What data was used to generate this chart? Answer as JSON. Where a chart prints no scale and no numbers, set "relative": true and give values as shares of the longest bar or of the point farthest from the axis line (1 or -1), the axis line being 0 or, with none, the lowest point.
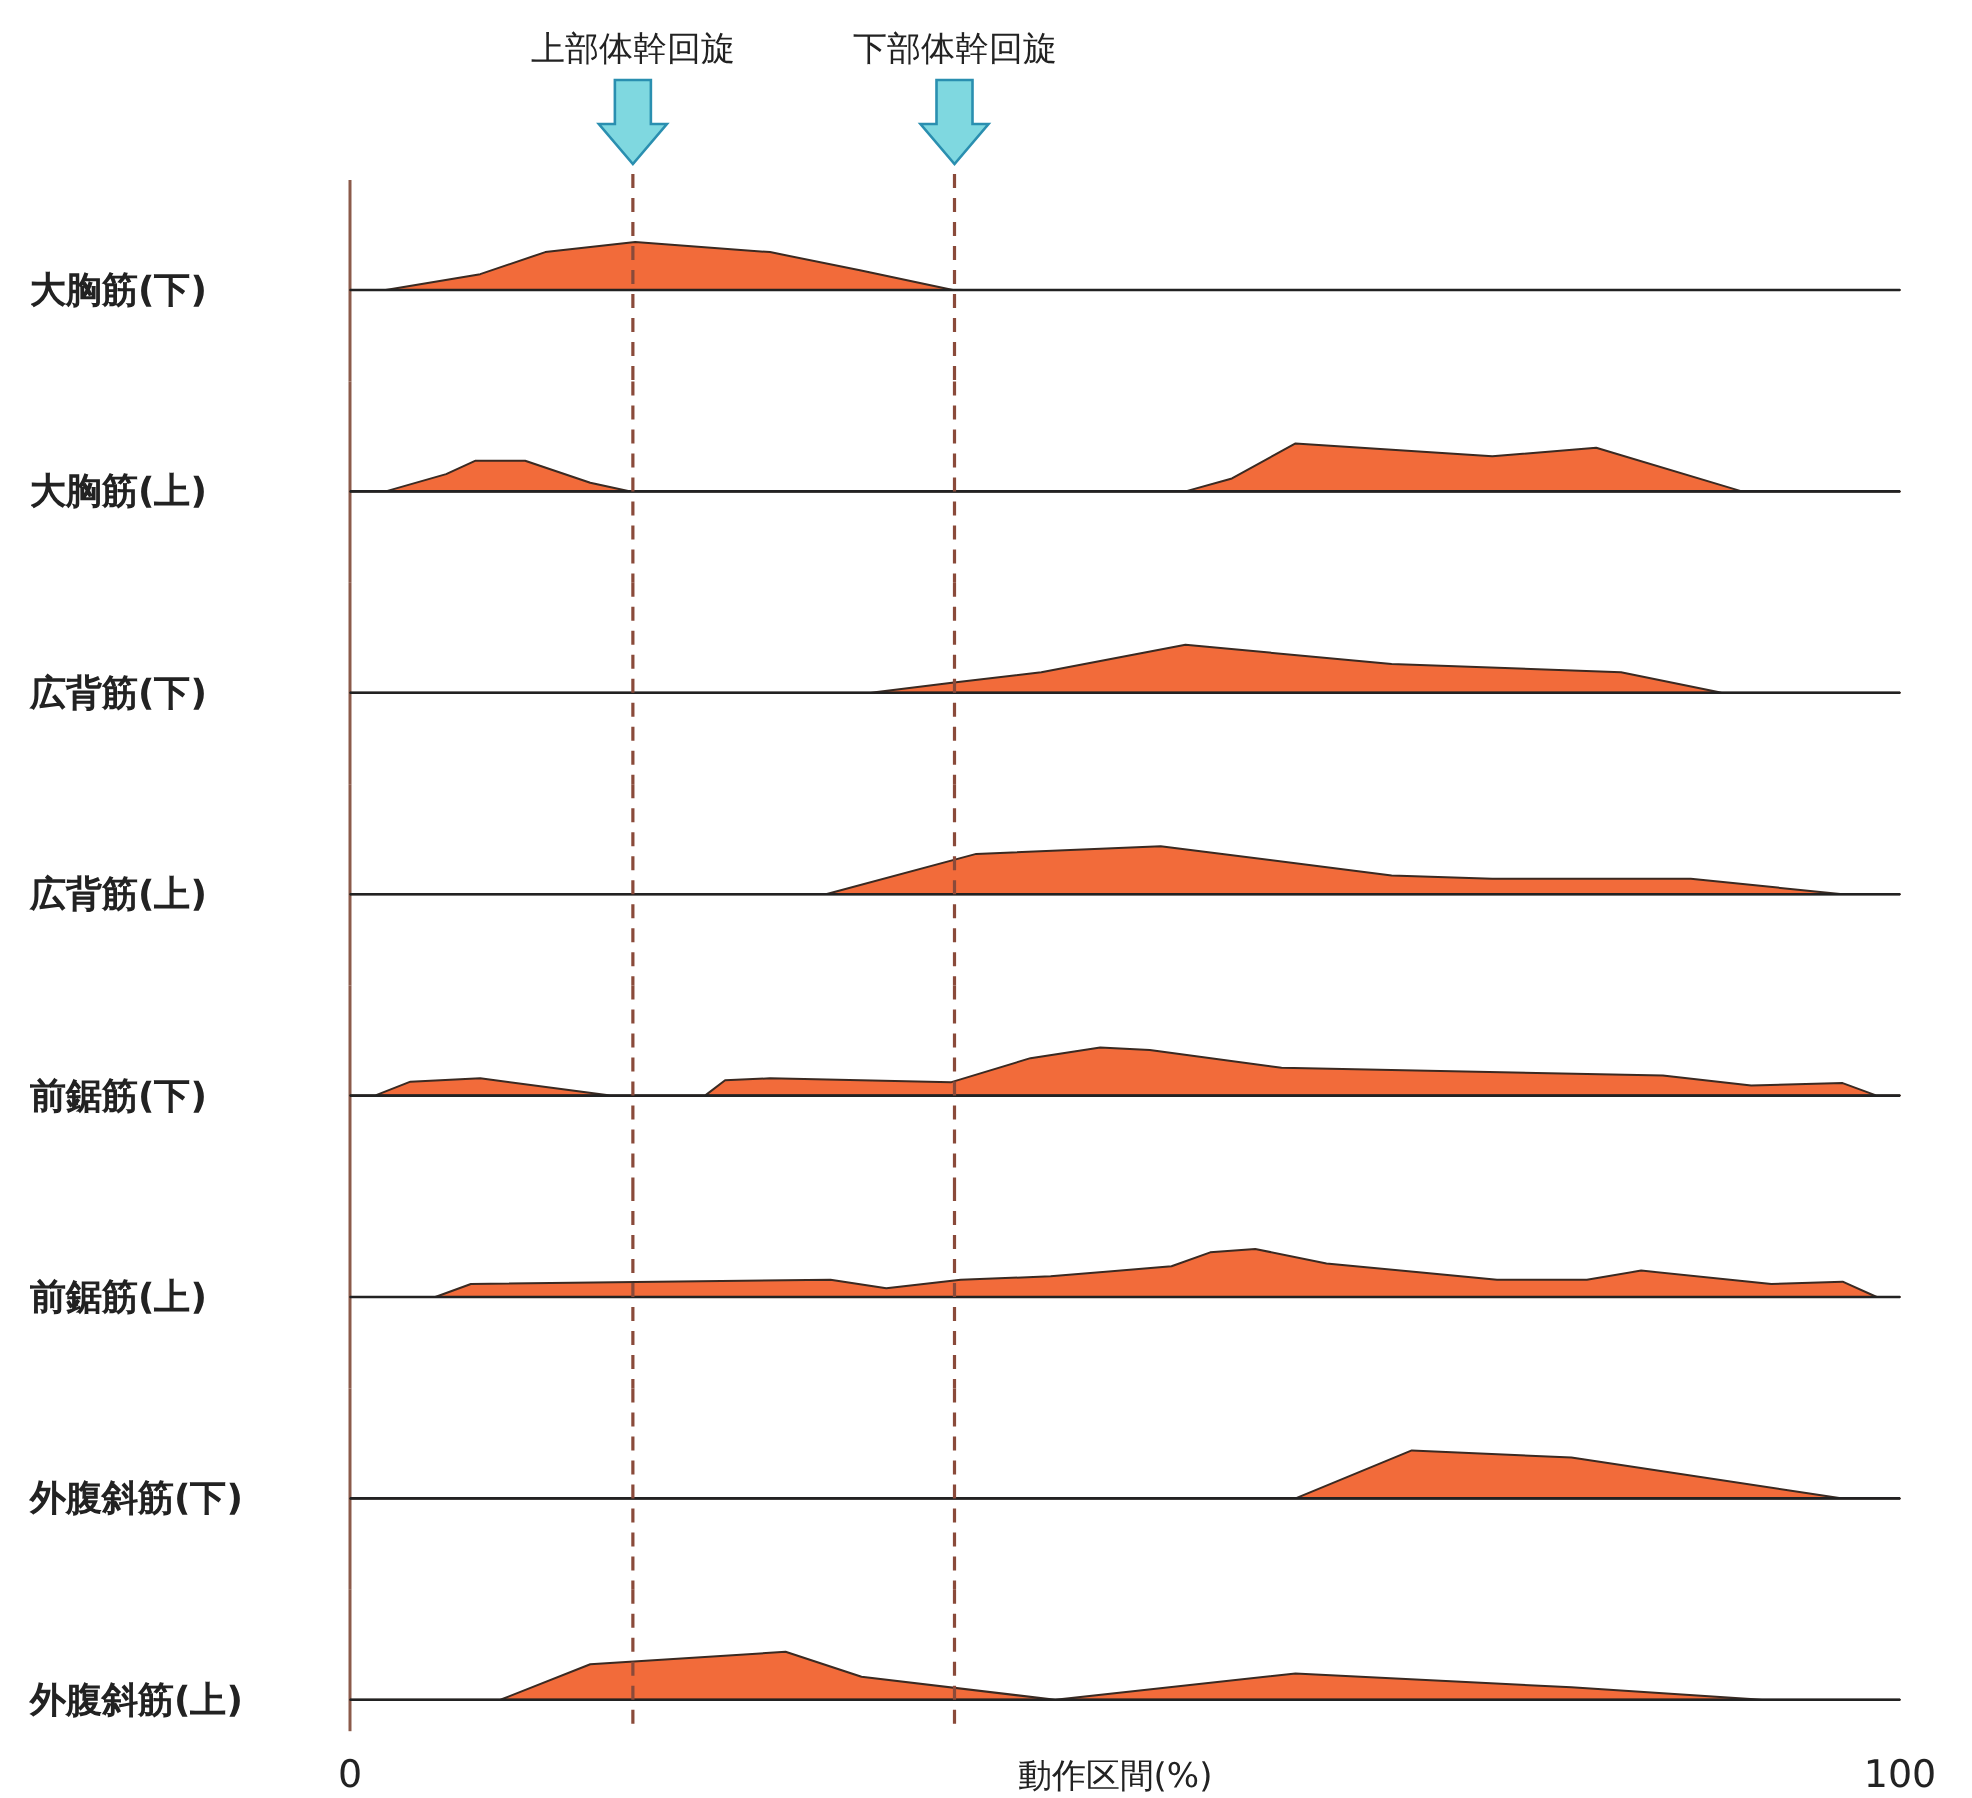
{
  "chart_data": [
    {
      "type": "area",
      "ylabel": "大胸筋(下)",
      "relative": true,
      "xlim": [
        0,
        100
      ],
      "tick_labels": false,
      "color": "#f26b3a",
      "x": [
        0,
        2.3,
        8.4,
        12.6,
        18.4,
        27.1,
        32.9,
        38.9,
        100
      ],
      "values": [
        0,
        0,
        0.33,
        0.79,
        1,
        0.79,
        0.41,
        0,
        0
      ],
      "ref_lines": [
        {
          "axis": "x",
          "value": 18.25,
          "label": "上部体幹回旋",
          "color": "#8a4a3a",
          "line_style": "dashed"
        },
        {
          "axis": "x",
          "value": 39,
          "label": "下部体幹回旋",
          "color": "#8a4a3a",
          "line_style": "dashed"
        }
      ]
    },
    {
      "type": "area",
      "ylabel": "大胸筋(上)",
      "relative": true,
      "xlim": [
        0,
        100
      ],
      "tick_labels": false,
      "color": "#f26b3a",
      "x": [
        0,
        2.3,
        6.2,
        8.1,
        11.3,
        15.5,
        18.1,
        53.9,
        56.9,
        61,
        73.7,
        80.4,
        89.8,
        100
      ],
      "values": [
        0,
        0,
        0.36,
        0.64,
        0.64,
        0.18,
        0,
        0,
        0.27,
        1,
        0.73,
        0.91,
        0,
        0
      ],
      "ref_lines": [
        {
          "axis": "x",
          "value": 18.25,
          "color": "#8a4a3a",
          "line_style": "dashed"
        },
        {
          "axis": "x",
          "value": 39,
          "color": "#8a4a3a",
          "line_style": "dashed"
        }
      ]
    },
    {
      "type": "area",
      "ylabel": "広背筋(下)",
      "relative": true,
      "xlim": [
        0,
        100
      ],
      "tick_labels": false,
      "color": "#f26b3a",
      "x": [
        0,
        33.6,
        39.1,
        44.6,
        53.9,
        67.2,
        82,
        88.5,
        100
      ],
      "values": [
        0,
        0,
        0.22,
        0.43,
        1,
        0.6,
        0.43,
        0,
        0
      ],
      "ref_lines": [
        {
          "axis": "x",
          "value": 18.25,
          "color": "#8a4a3a",
          "line_style": "dashed"
        },
        {
          "axis": "x",
          "value": 39,
          "color": "#8a4a3a",
          "line_style": "dashed"
        }
      ]
    },
    {
      "type": "area",
      "ylabel": "広背筋(上)",
      "relative": true,
      "xlim": [
        0,
        100
      ],
      "tick_labels": false,
      "color": "#f26b3a",
      "x": [
        0,
        30.7,
        40.4,
        52.3,
        67.2,
        73.7,
        86.5,
        96.3,
        100
      ],
      "values": [
        0,
        0,
        0.84,
        1,
        0.39,
        0.32,
        0.32,
        0,
        0
      ],
      "ref_lines": [
        {
          "axis": "x",
          "value": 18.25,
          "color": "#8a4a3a",
          "line_style": "dashed"
        },
        {
          "axis": "x",
          "value": 39,
          "color": "#8a4a3a",
          "line_style": "dashed"
        }
      ]
    },
    {
      "type": "area",
      "ylabel": "前鋸筋(下)",
      "relative": true,
      "xlim": [
        0,
        100
      ],
      "tick_labels": false,
      "color": "#f26b3a",
      "x": [
        0,
        1.6,
        3.9,
        8.4,
        16.8,
        22.9,
        24.2,
        27.1,
        38.8,
        43.9,
        48.4,
        51.6,
        60.1,
        84.7,
        90.4,
        96.3,
        98.5,
        100
      ],
      "values": [
        0,
        0,
        0.29,
        0.36,
        0,
        0,
        0.32,
        0.36,
        0.28,
        0.78,
        1,
        0.95,
        0.58,
        0.42,
        0.21,
        0.26,
        0,
        0
      ],
      "ref_lines": [
        {
          "axis": "x",
          "value": 18.25,
          "color": "#8a4a3a",
          "line_style": "dashed"
        },
        {
          "axis": "x",
          "value": 39,
          "color": "#8a4a3a",
          "line_style": "dashed"
        }
      ]
    },
    {
      "type": "area",
      "ylabel": "前鋸筋(上)",
      "relative": true,
      "xlim": [
        0,
        100
      ],
      "tick_labels": false,
      "color": "#f26b3a",
      "x": [
        0,
        5.5,
        7.8,
        31,
        34.6,
        39.4,
        45.2,
        53,
        55.5,
        58.4,
        63,
        74,
        79.8,
        83.3,
        91.7,
        96.3,
        98.5,
        100
      ],
      "values": [
        0,
        0,
        0.27,
        0.36,
        0.18,
        0.36,
        0.43,
        0.64,
        0.93,
        1,
        0.7,
        0.36,
        0.36,
        0.55,
        0.27,
        0.32,
        0,
        0
      ],
      "ref_lines": [
        {
          "axis": "x",
          "value": 18.25,
          "color": "#8a4a3a",
          "line_style": "dashed"
        },
        {
          "axis": "x",
          "value": 39,
          "color": "#8a4a3a",
          "line_style": "dashed"
        }
      ]
    },
    {
      "type": "area",
      "ylabel": "外腹斜筋(下)",
      "relative": true,
      "xlim": [
        0,
        100
      ],
      "tick_labels": false,
      "color": "#f26b3a",
      "x": [
        0,
        61,
        68.5,
        78.8,
        96.3,
        100
      ],
      "values": [
        0,
        0,
        1,
        0.85,
        0,
        0
      ],
      "ref_lines": [
        {
          "axis": "x",
          "value": 18.25,
          "color": "#8a4a3a",
          "line_style": "dashed"
        },
        {
          "axis": "x",
          "value": 39,
          "color": "#8a4a3a",
          "line_style": "dashed"
        }
      ]
    },
    {
      "type": "area",
      "ylabel": "外腹斜筋(上)",
      "xlabel": "動作区間(%)",
      "relative": true,
      "xlim": [
        0,
        100
      ],
      "xticks": [
        0,
        100
      ],
      "tick_labels": "x",
      "color": "#f26b3a",
      "x": [
        0,
        9.7,
        15.5,
        28.1,
        33,
        45.5,
        61,
        78.8,
        91.1,
        100
      ],
      "values": [
        0,
        0,
        0.74,
        1,
        0.48,
        0,
        0.55,
        0.26,
        0,
        0
      ],
      "ref_lines": [
        {
          "axis": "x",
          "value": 18.25,
          "color": "#8a4a3a",
          "line_style": "dashed"
        },
        {
          "axis": "x",
          "value": 39,
          "color": "#8a4a3a",
          "line_style": "dashed"
        }
      ]
    }
  ]
}
